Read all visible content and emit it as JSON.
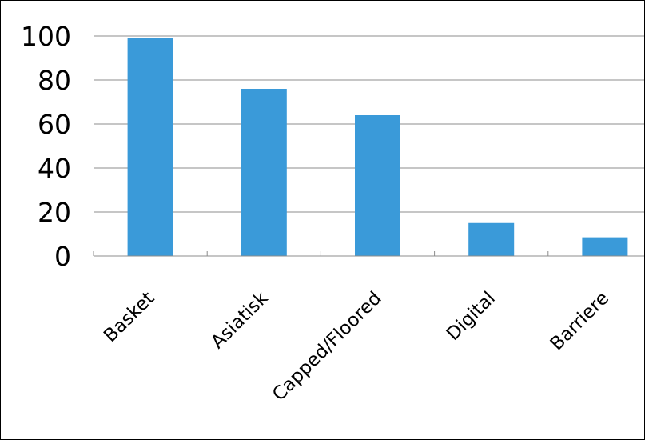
{
  "chart_data": {
    "type": "bar",
    "categories": [
      "Basket",
      "Asiatisk",
      "Capped/Floored",
      "Digital",
      "Barriere"
    ],
    "values": [
      99,
      76,
      64,
      15,
      8.5
    ],
    "title": "",
    "xlabel": "",
    "ylabel": "",
    "ylim": [
      0,
      100
    ],
    "yticks": [
      "0",
      "20",
      "40",
      "60",
      "80",
      "100"
    ],
    "grid": true,
    "legend": "none",
    "colors": {
      "bar": "#3a9ad9",
      "gridline": "#8c8c8c",
      "axis": "#8c8c8c",
      "text": "#000000",
      "border": "#000000"
    }
  }
}
